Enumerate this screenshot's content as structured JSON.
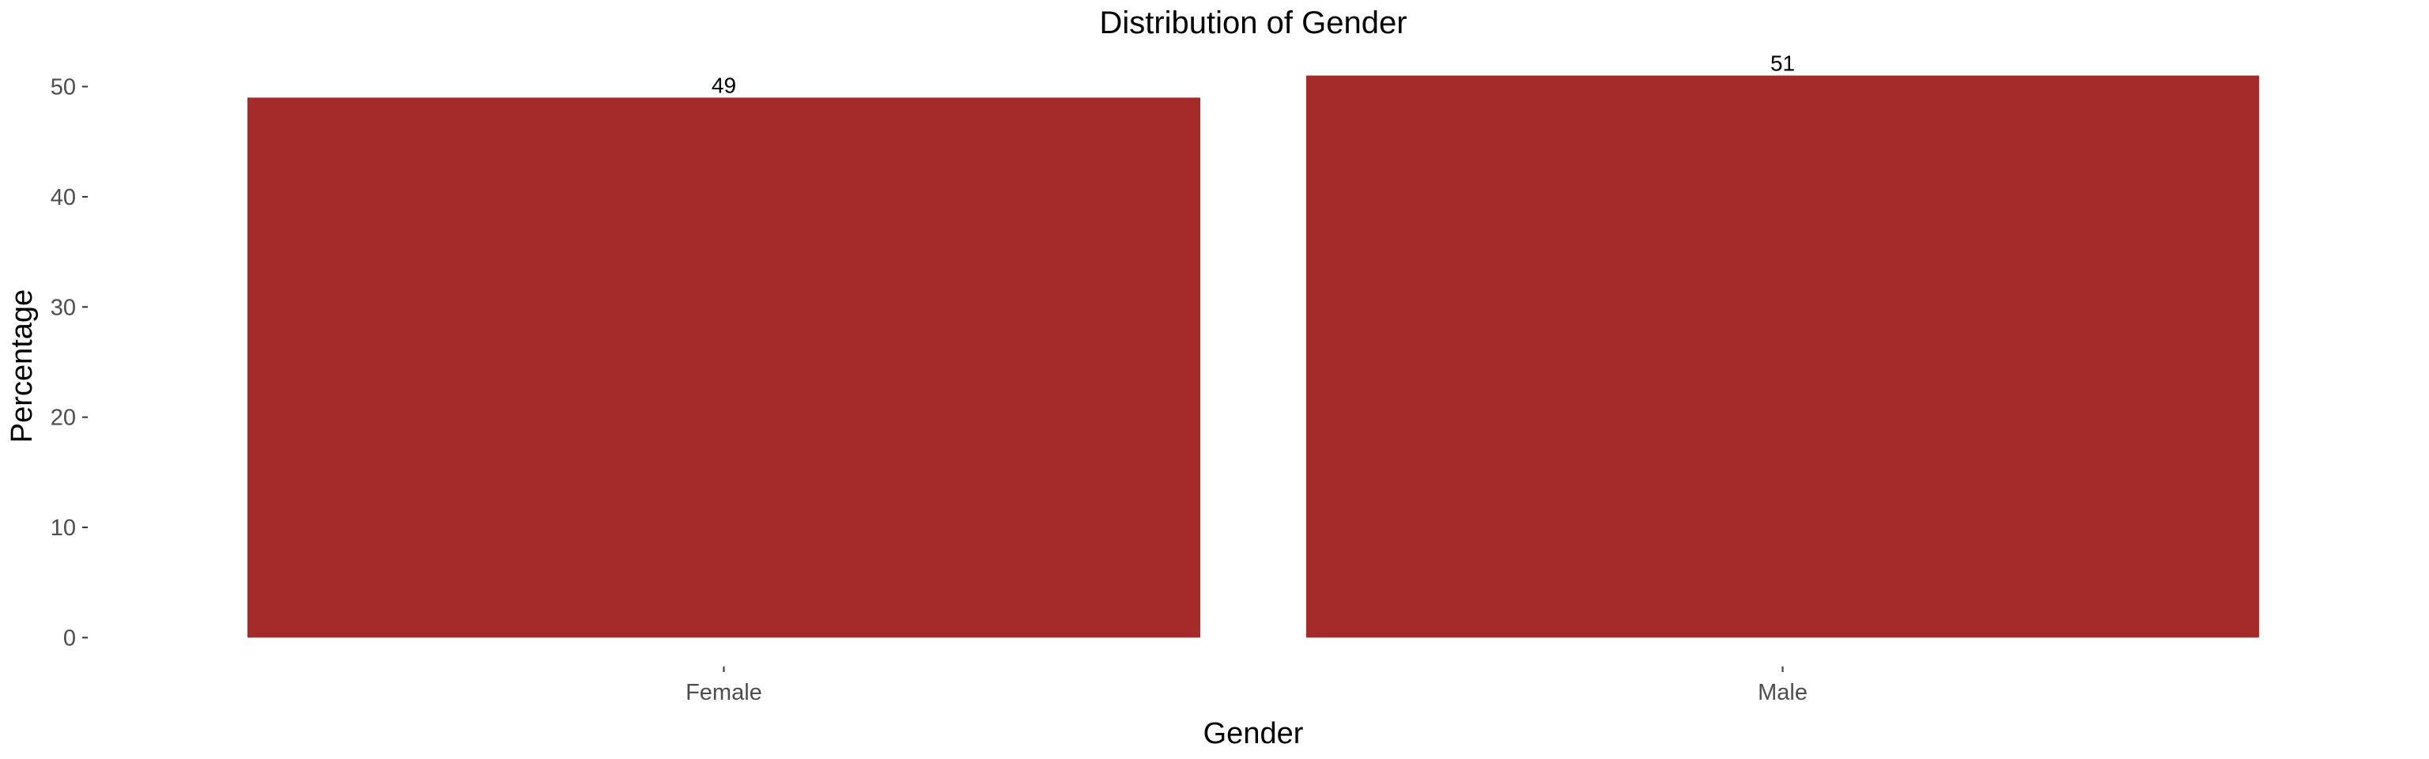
{
  "chart_data": {
    "type": "bar",
    "title": "Distribution of Gender",
    "xlabel": "Gender",
    "ylabel": "Percentage",
    "categories": [
      "Female",
      "Male"
    ],
    "values": [
      49,
      51
    ],
    "data_labels": [
      "49",
      "51"
    ],
    "ylim": [
      0,
      51
    ],
    "yticks": [
      0,
      10,
      20,
      30,
      40,
      50
    ],
    "ytick_labels": [
      "0",
      "10",
      "20",
      "30",
      "40",
      "50"
    ],
    "grid": false,
    "legend": "none",
    "bar_color": "#A52A2A"
  }
}
